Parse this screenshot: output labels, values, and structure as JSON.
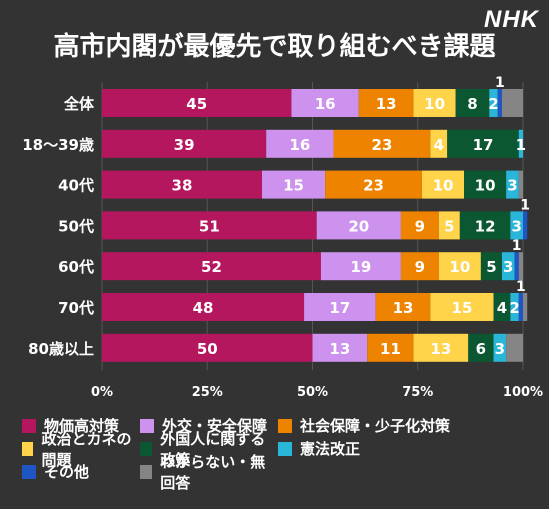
{
  "logo": "NHK",
  "chart_data": {
    "type": "bar",
    "orientation": "horizontal",
    "stacked": true,
    "title": "高市内閣が最優先で取り組むべき課題",
    "categories": [
      "全体",
      "18～39歳",
      "40代",
      "50代",
      "60代",
      "70代",
      "80歳以上"
    ],
    "xlim": [
      0,
      100
    ],
    "xticks": [
      "0%",
      "25%",
      "50%",
      "75%",
      "100%"
    ],
    "series": [
      {
        "name": "物価高対策",
        "color": "#b5175f",
        "values": [
          45,
          39,
          38,
          51,
          52,
          48,
          50
        ]
      },
      {
        "name": "外交・安全保障",
        "color": "#cc92ee",
        "values": [
          16,
          16,
          15,
          20,
          19,
          17,
          13
        ]
      },
      {
        "name": "社会保障・少子化対策",
        "color": "#ee8300",
        "values": [
          13,
          23,
          23,
          9,
          9,
          13,
          11
        ]
      },
      {
        "name": "政治とカネの問題",
        "color": "#ffd34a",
        "values": [
          10,
          4,
          10,
          5,
          10,
          15,
          13
        ]
      },
      {
        "name": "外国人に関する政策",
        "color": "#0b5731",
        "values": [
          8,
          17,
          10,
          12,
          5,
          4,
          6
        ]
      },
      {
        "name": "憲法改正",
        "color": "#29b6d8",
        "values": [
          2,
          1,
          3,
          3,
          3,
          2,
          3
        ]
      },
      {
        "name": "その他",
        "color": "#1f55c4",
        "values": [
          1,
          0,
          0,
          1,
          1,
          1,
          0
        ]
      },
      {
        "name": "わからない・無回答",
        "color": "#858585",
        "values": [
          5,
          0,
          1,
          0,
          1,
          1,
          4
        ]
      }
    ],
    "labels": [
      [
        "45",
        "16",
        "13",
        "10",
        "8",
        "2",
        "1",
        ""
      ],
      [
        "39",
        "16",
        "23",
        "4",
        "17",
        "1",
        "",
        ""
      ],
      [
        "38",
        "15",
        "23",
        "10",
        "10",
        "3",
        "",
        ""
      ],
      [
        "51",
        "20",
        "9",
        "5",
        "12",
        "3",
        "1",
        ""
      ],
      [
        "52",
        "19",
        "9",
        "10",
        "5",
        "3",
        "1",
        ""
      ],
      [
        "48",
        "17",
        "13",
        "15",
        "4",
        "2",
        "1",
        ""
      ],
      [
        "50",
        "13",
        "11",
        "13",
        "6",
        "3",
        "",
        ""
      ]
    ],
    "grid": true,
    "legend_position": "bottom"
  },
  "legend": {
    "rows": [
      [
        0,
        1,
        2
      ],
      [
        3,
        4,
        5
      ],
      [
        6,
        7
      ]
    ]
  }
}
